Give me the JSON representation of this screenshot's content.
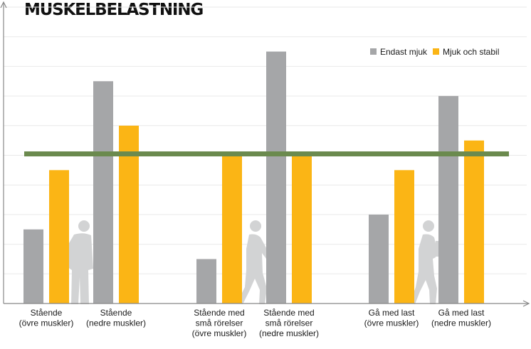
{
  "chart_data": {
    "type": "bar",
    "title": "MUSKELBELASTNING",
    "categories": [
      [
        "Stående",
        "(övre muskler)"
      ],
      [
        "Stående",
        "(nedre muskler)"
      ],
      [
        "Stående med",
        "små rörelser",
        "(övre muskler)"
      ],
      [
        "Stående med",
        "små rörelser",
        "(nedre muskler)"
      ],
      [
        "Gå med last",
        "(övre muskler)"
      ],
      [
        "Gå med last",
        "(nedre muskler)"
      ]
    ],
    "series": [
      {
        "name": "Endast mjuk",
        "color": "#a5a6a8",
        "values": [
          2.5,
          7.5,
          1.5,
          8.5,
          3.0,
          7.0
        ]
      },
      {
        "name": "Mjuk och stabil",
        "color": "#fbb515",
        "values": [
          4.5,
          6.0,
          5.0,
          5.0,
          4.5,
          5.5
        ]
      }
    ],
    "reference_line": {
      "value": 5.0,
      "color": "#6b8a4e"
    },
    "ylim": [
      0,
      10
    ],
    "xlabel": "",
    "ylabel": "",
    "grid": true,
    "legend": "top-right",
    "decorations": [
      "person-standing-icon",
      "person-walking-icon",
      "person-carrying-box-icon"
    ]
  }
}
